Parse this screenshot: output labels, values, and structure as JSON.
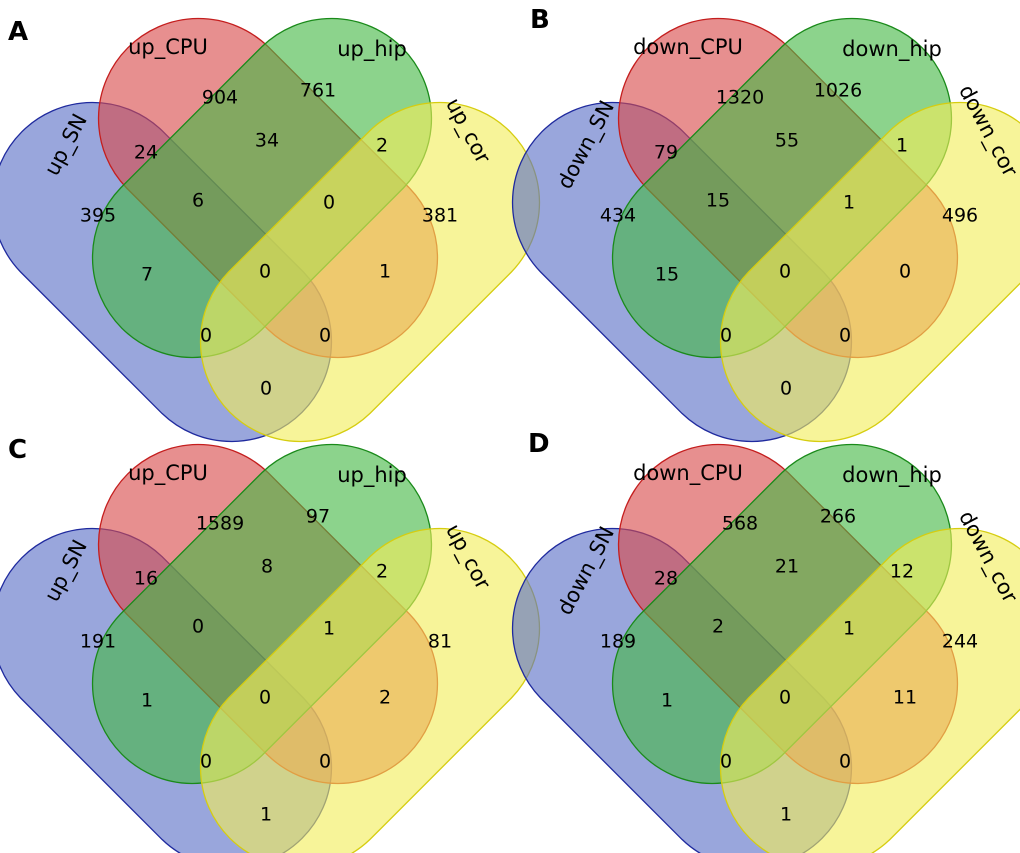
{
  "colors": {
    "SN": {
      "fill": "#5a6fc6",
      "stroke": "#1f2a9e"
    },
    "CPU": {
      "fill": "#d84b4b",
      "stroke": "#c41e1e"
    },
    "hip": {
      "fill": "#45b845",
      "stroke": "#1a8a1a"
    },
    "cor": {
      "fill": "#f2ee5a",
      "stroke": "#d6cd10"
    }
  },
  "panels": [
    {
      "label": "A",
      "sets": {
        "SN": "up_SN",
        "CPU": "up_CPU",
        "hip": "up_hip",
        "cor": "up_cor"
      },
      "counts": {
        "sn": "395",
        "cpu": "904",
        "hip": "761",
        "cor": "381",
        "sn_cpu": "24",
        "cpu_hip": "34",
        "hip_cor": "2",
        "sn_cpu_hip": "6",
        "cpu_hip_cor": "0",
        "sn_hip": "7",
        "all": "0",
        "cpu_cor": "1",
        "sn_hip_cor": "0",
        "sn_cpu_cor": "0",
        "sn_cor": "0"
      }
    },
    {
      "label": "B",
      "sets": {
        "SN": "down_SN",
        "CPU": "down_CPU",
        "hip": "down_hip",
        "cor": "down_cor"
      },
      "counts": {
        "sn": "434",
        "cpu": "1320",
        "hip": "1026",
        "cor": "496",
        "sn_cpu": "79",
        "cpu_hip": "55",
        "hip_cor": "1",
        "sn_cpu_hip": "15",
        "cpu_hip_cor": "1",
        "sn_hip": "15",
        "all": "0",
        "cpu_cor": "0",
        "sn_hip_cor": "0",
        "sn_cpu_cor": "0",
        "sn_cor": "0"
      }
    },
    {
      "label": "C",
      "sets": {
        "SN": "up_SN",
        "CPU": "up_CPU",
        "hip": "up_hip",
        "cor": "up_cor"
      },
      "counts": {
        "sn": "191",
        "cpu": "1589",
        "hip": "97",
        "cor": "81",
        "sn_cpu": "16",
        "cpu_hip": "8",
        "hip_cor": "2",
        "sn_cpu_hip": "0",
        "cpu_hip_cor": "1",
        "sn_hip": "1",
        "all": "0",
        "cpu_cor": "2",
        "sn_hip_cor": "0",
        "sn_cpu_cor": "0",
        "sn_cor": "1"
      }
    },
    {
      "label": "D",
      "sets": {
        "SN": "down_SN",
        "CPU": "down_CPU",
        "hip": "down_hip",
        "cor": "down_cor"
      },
      "counts": {
        "sn": "189",
        "cpu": "568",
        "hip": "266",
        "cor": "244",
        "sn_cpu": "28",
        "cpu_hip": "21",
        "hip_cor": "12",
        "sn_cpu_hip": "2",
        "cpu_hip_cor": "1",
        "sn_hip": "1",
        "all": "0",
        "cpu_cor": "11",
        "sn_hip_cor": "0",
        "sn_cpu_cor": "0",
        "sn_cor": "1"
      }
    }
  ]
}
